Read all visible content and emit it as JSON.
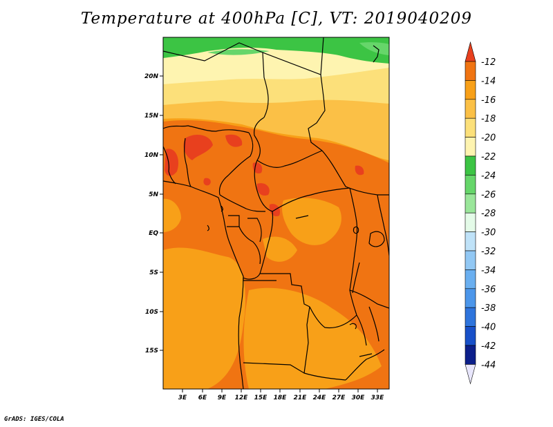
{
  "title": "Temperature at 400hPa [C], VT: 2019040209",
  "credit": "GrADS: IGES/COLA",
  "axes": {
    "lat_labels": [
      "20N",
      "15N",
      "10N",
      "5N",
      "EQ",
      "5S",
      "10S",
      "15S"
    ],
    "lon_labels": [
      "3E",
      "6E",
      "9E",
      "12E",
      "15E",
      "18E",
      "21E",
      "24E",
      "27E",
      "30E",
      "33E"
    ]
  },
  "colorbar": {
    "labels": [
      "-12",
      "-14",
      "-16",
      "-18",
      "-20",
      "-22",
      "-24",
      "-26",
      "-28",
      "-30",
      "-32",
      "-34",
      "-36",
      "-38",
      "-40",
      "-42",
      "-44"
    ],
    "colors": [
      "#e8401e",
      "#f07412",
      "#f8a018",
      "#fbc046",
      "#fce07a",
      "#fef4b0",
      "#3cc444",
      "#66d66a",
      "#9ae69a",
      "#e4fbe8",
      "#bfe2f8",
      "#92c8f4",
      "#6aaff0",
      "#4c96ea",
      "#2e74dc",
      "#1850c8",
      "#0c1f8a"
    ],
    "low_end_color": "#e8e6fc",
    "high_end_color": "#e8401e"
  }
}
